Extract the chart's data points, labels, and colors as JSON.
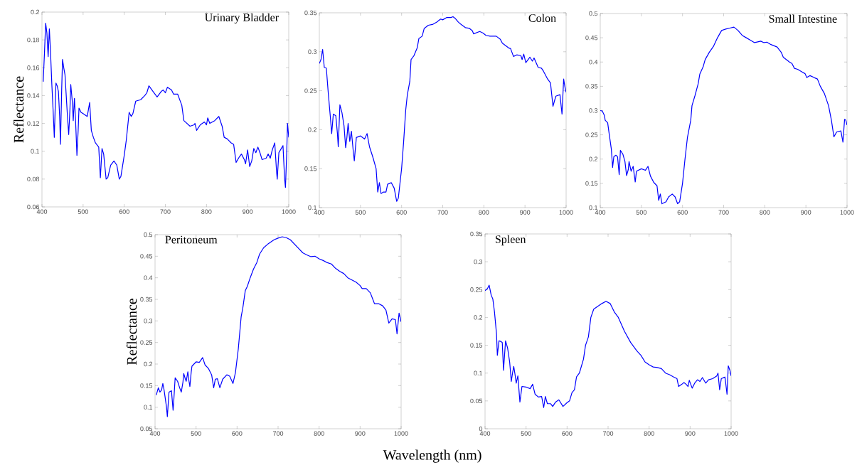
{
  "chart_data": [
    {
      "type": "line",
      "title": "Urinary Bladder",
      "ylabel": "Reflectance",
      "xlim": [
        400,
        1000
      ],
      "ylim": [
        0.06,
        0.2
      ],
      "xticks": [
        400,
        500,
        600,
        700,
        800,
        900,
        1000
      ],
      "yticks": [
        0.06,
        0.08,
        0.1,
        0.12,
        0.14,
        0.16,
        0.18,
        0.2
      ],
      "series": [
        {
          "color": "#0000ff",
          "x": [
            403,
            406,
            409,
            412,
            415,
            418,
            421,
            424,
            427,
            430,
            434,
            437,
            440,
            443,
            445,
            448,
            450,
            453,
            456,
            459,
            462,
            465,
            468,
            470,
            474,
            476,
            479,
            482,
            485,
            488,
            490,
            495,
            500,
            510,
            516,
            520,
            525,
            530,
            538,
            542,
            546,
            550,
            556,
            560,
            567,
            575,
            582,
            588,
            592,
            600,
            605,
            612,
            617,
            621,
            628,
            640,
            650,
            655,
            660,
            670,
            680,
            690,
            695,
            700,
            705,
            715,
            720,
            730,
            740,
            745,
            760,
            770,
            772,
            776,
            785,
            795,
            800,
            803,
            808,
            820,
            830,
            838,
            843,
            850,
            860,
            866,
            872,
            880,
            885,
            892,
            895,
            900,
            905,
            910,
            915,
            920,
            925,
            930,
            935,
            945,
            950,
            955,
            960,
            966,
            970,
            972,
            976,
            986,
            990,
            992,
            995,
            997,
            1000
          ],
          "values": [
            0.15,
            0.17,
            0.192,
            0.185,
            0.168,
            0.188,
            0.17,
            0.148,
            0.13,
            0.11,
            0.149,
            0.147,
            0.143,
            0.125,
            0.105,
            0.145,
            0.166,
            0.16,
            0.155,
            0.14,
            0.125,
            0.112,
            0.13,
            0.148,
            0.135,
            0.122,
            0.138,
            0.12,
            0.097,
            0.115,
            0.131,
            0.128,
            0.127,
            0.125,
            0.135,
            0.115,
            0.11,
            0.106,
            0.103,
            0.081,
            0.102,
            0.098,
            0.08,
            0.081,
            0.09,
            0.093,
            0.09,
            0.08,
            0.082,
            0.097,
            0.108,
            0.128,
            0.125,
            0.127,
            0.136,
            0.137,
            0.14,
            0.142,
            0.147,
            0.143,
            0.139,
            0.143,
            0.144,
            0.142,
            0.146,
            0.144,
            0.141,
            0.141,
            0.133,
            0.122,
            0.118,
            0.119,
            0.12,
            0.115,
            0.119,
            0.121,
            0.119,
            0.124,
            0.12,
            0.122,
            0.125,
            0.118,
            0.11,
            0.109,
            0.106,
            0.105,
            0.092,
            0.096,
            0.098,
            0.094,
            0.091,
            0.101,
            0.089,
            0.093,
            0.102,
            0.099,
            0.103,
            0.099,
            0.094,
            0.095,
            0.098,
            0.095,
            0.101,
            0.106,
            0.087,
            0.08,
            0.099,
            0.104,
            0.08,
            0.074,
            0.098,
            0.12,
            0.11
          ]
        }
      ]
    },
    {
      "type": "line",
      "title": "Colon",
      "xlim": [
        400,
        1000
      ],
      "ylim": [
        0.1,
        0.35
      ],
      "xticks": [
        400,
        500,
        600,
        700,
        800,
        900,
        1000
      ],
      "yticks": [
        0.1,
        0.15,
        0.2,
        0.25,
        0.3,
        0.35
      ],
      "series": [
        {
          "color": "#0000ff",
          "x": [
            400,
            404,
            408,
            412,
            417,
            422,
            427,
            430,
            434,
            440,
            444,
            446,
            450,
            455,
            460,
            464,
            467,
            470,
            474,
            478,
            482,
            485,
            490,
            500,
            510,
            516,
            522,
            530,
            538,
            542,
            546,
            550,
            556,
            562,
            566,
            575,
            582,
            588,
            592,
            600,
            605,
            610,
            614,
            620,
            623,
            630,
            638,
            642,
            650,
            655,
            665,
            675,
            685,
            695,
            700,
            710,
            720,
            725,
            730,
            738,
            745,
            755,
            765,
            772,
            775,
            790,
            798,
            805,
            815,
            830,
            840,
            845,
            860,
            865,
            872,
            880,
            890,
            893,
            897,
            902,
            912,
            918,
            922,
            932,
            940,
            945,
            955,
            962,
            968,
            975,
            985,
            990,
            994,
            997,
            1000
          ],
          "values": [
            0.285,
            0.29,
            0.303,
            0.28,
            0.279,
            0.245,
            0.215,
            0.195,
            0.22,
            0.218,
            0.195,
            0.178,
            0.232,
            0.222,
            0.205,
            0.177,
            0.19,
            0.208,
            0.185,
            0.198,
            0.175,
            0.16,
            0.19,
            0.192,
            0.188,
            0.195,
            0.178,
            0.165,
            0.15,
            0.12,
            0.132,
            0.118,
            0.12,
            0.12,
            0.13,
            0.132,
            0.125,
            0.108,
            0.112,
            0.15,
            0.185,
            0.225,
            0.245,
            0.262,
            0.29,
            0.295,
            0.305,
            0.317,
            0.32,
            0.33,
            0.334,
            0.335,
            0.338,
            0.342,
            0.341,
            0.344,
            0.344,
            0.345,
            0.343,
            0.338,
            0.335,
            0.331,
            0.33,
            0.327,
            0.323,
            0.326,
            0.324,
            0.321,
            0.32,
            0.32,
            0.316,
            0.311,
            0.305,
            0.304,
            0.294,
            0.296,
            0.295,
            0.29,
            0.297,
            0.286,
            0.293,
            0.288,
            0.292,
            0.28,
            0.279,
            0.275,
            0.265,
            0.26,
            0.23,
            0.243,
            0.245,
            0.22,
            0.265,
            0.255,
            0.248
          ]
        }
      ]
    },
    {
      "type": "line",
      "title": "Small Intestine",
      "xlim": [
        400,
        1000
      ],
      "ylim": [
        0.1,
        0.5
      ],
      "xticks": [
        400,
        500,
        600,
        700,
        800,
        900,
        1000
      ],
      "yticks": [
        0.1,
        0.15,
        0.2,
        0.25,
        0.3,
        0.35,
        0.4,
        0.45,
        0.5
      ],
      "series": [
        {
          "color": "#0000ff",
          "x": [
            400,
            405,
            410,
            412,
            418,
            422,
            427,
            430,
            433,
            438,
            442,
            446,
            449,
            455,
            460,
            464,
            468,
            470,
            475,
            480,
            485,
            488,
            500,
            510,
            516,
            522,
            530,
            538,
            542,
            546,
            550,
            560,
            566,
            575,
            582,
            588,
            593,
            600,
            606,
            612,
            620,
            623,
            630,
            638,
            642,
            650,
            655,
            665,
            675,
            685,
            695,
            705,
            715,
            725,
            735,
            745,
            755,
            765,
            775,
            785,
            790,
            798,
            805,
            815,
            830,
            840,
            845,
            860,
            866,
            872,
            880,
            890,
            898,
            902,
            910,
            920,
            928,
            935,
            945,
            955,
            962,
            968,
            975,
            985,
            990,
            994,
            997,
            1000
          ],
          "values": [
            0.3,
            0.299,
            0.29,
            0.28,
            0.275,
            0.25,
            0.22,
            0.183,
            0.205,
            0.208,
            0.205,
            0.168,
            0.218,
            0.21,
            0.195,
            0.166,
            0.178,
            0.195,
            0.175,
            0.185,
            0.153,
            0.175,
            0.18,
            0.177,
            0.185,
            0.165,
            0.152,
            0.145,
            0.115,
            0.128,
            0.108,
            0.112,
            0.122,
            0.128,
            0.122,
            0.108,
            0.112,
            0.15,
            0.2,
            0.245,
            0.28,
            0.31,
            0.33,
            0.355,
            0.375,
            0.39,
            0.405,
            0.42,
            0.432,
            0.45,
            0.465,
            0.468,
            0.47,
            0.472,
            0.465,
            0.455,
            0.45,
            0.445,
            0.44,
            0.442,
            0.443,
            0.44,
            0.441,
            0.436,
            0.431,
            0.42,
            0.41,
            0.4,
            0.397,
            0.387,
            0.385,
            0.38,
            0.376,
            0.368,
            0.372,
            0.368,
            0.365,
            0.35,
            0.335,
            0.31,
            0.28,
            0.246,
            0.256,
            0.258,
            0.235,
            0.282,
            0.28,
            0.27
          ]
        }
      ]
    },
    {
      "type": "line",
      "title": "Peritoneum",
      "ylabel": "Reflectance",
      "xlabel": "Wavelength (nm)",
      "xlim": [
        400,
        1000
      ],
      "ylim": [
        0.05,
        0.5
      ],
      "xticks": [
        400,
        500,
        600,
        700,
        800,
        900,
        1000
      ],
      "yticks": [
        0.05,
        0.1,
        0.15,
        0.2,
        0.25,
        0.3,
        0.35,
        0.4,
        0.45,
        0.5
      ],
      "series": [
        {
          "color": "#0000ff",
          "x": [
            403,
            408,
            412,
            416,
            419,
            422,
            428,
            430,
            434,
            440,
            444,
            446,
            449,
            455,
            460,
            464,
            468,
            470,
            474,
            476,
            480,
            482,
            485,
            488,
            490,
            500,
            508,
            516,
            522,
            530,
            538,
            543,
            547,
            552,
            558,
            565,
            575,
            582,
            590,
            596,
            603,
            610,
            614,
            620,
            625,
            632,
            640,
            648,
            655,
            665,
            675,
            690,
            700,
            710,
            720,
            730,
            740,
            750,
            760,
            770,
            780,
            790,
            800,
            810,
            820,
            830,
            840,
            850,
            860,
            870,
            880,
            890,
            900,
            905,
            915,
            925,
            935,
            945,
            955,
            963,
            970,
            978,
            986,
            990,
            995,
            1000
          ],
          "values": [
            0.128,
            0.145,
            0.135,
            0.14,
            0.155,
            0.14,
            0.1,
            0.078,
            0.135,
            0.138,
            0.093,
            0.12,
            0.168,
            0.16,
            0.145,
            0.135,
            0.158,
            0.178,
            0.165,
            0.16,
            0.182,
            0.165,
            0.148,
            0.18,
            0.195,
            0.205,
            0.204,
            0.215,
            0.198,
            0.19,
            0.175,
            0.145,
            0.165,
            0.166,
            0.145,
            0.165,
            0.175,
            0.172,
            0.155,
            0.18,
            0.235,
            0.31,
            0.33,
            0.37,
            0.38,
            0.4,
            0.42,
            0.435,
            0.455,
            0.47,
            0.478,
            0.488,
            0.492,
            0.495,
            0.493,
            0.488,
            0.478,
            0.468,
            0.458,
            0.453,
            0.449,
            0.45,
            0.444,
            0.44,
            0.435,
            0.432,
            0.422,
            0.415,
            0.41,
            0.4,
            0.395,
            0.39,
            0.382,
            0.375,
            0.375,
            0.365,
            0.34,
            0.34,
            0.335,
            0.325,
            0.295,
            0.305,
            0.303,
            0.27,
            0.318,
            0.298
          ]
        }
      ]
    },
    {
      "type": "line",
      "title": "Spleen",
      "xlim": [
        400,
        1000
      ],
      "ylim": [
        0,
        0.35
      ],
      "xticks": [
        400,
        500,
        600,
        700,
        800,
        900,
        1000
      ],
      "yticks": [
        0,
        0.05,
        0.1,
        0.15,
        0.2,
        0.25,
        0.3,
        0.35
      ],
      "series": [
        {
          "color": "#0000ff",
          "x": [
            400,
            406,
            410,
            415,
            419,
            423,
            428,
            430,
            434,
            438,
            442,
            445,
            450,
            455,
            460,
            464,
            467,
            470,
            473,
            476,
            480,
            485,
            490,
            500,
            510,
            516,
            522,
            530,
            538,
            543,
            547,
            552,
            560,
            565,
            572,
            580,
            590,
            600,
            606,
            612,
            618,
            623,
            630,
            640,
            645,
            652,
            658,
            665,
            675,
            685,
            695,
            705,
            715,
            725,
            740,
            755,
            770,
            780,
            790,
            800,
            810,
            820,
            830,
            840,
            850,
            860,
            868,
            872,
            880,
            885,
            890,
            895,
            898,
            905,
            912,
            918,
            924,
            930,
            938,
            945,
            955,
            965,
            968,
            972,
            976,
            985,
            990,
            993,
            997,
            1000
          ],
          "values": [
            0.248,
            0.252,
            0.258,
            0.24,
            0.233,
            0.21,
            0.17,
            0.132,
            0.158,
            0.157,
            0.155,
            0.105,
            0.158,
            0.145,
            0.12,
            0.085,
            0.1,
            0.112,
            0.098,
            0.082,
            0.095,
            0.048,
            0.076,
            0.075,
            0.072,
            0.08,
            0.062,
            0.057,
            0.058,
            0.038,
            0.058,
            0.045,
            0.045,
            0.04,
            0.048,
            0.052,
            0.04,
            0.047,
            0.05,
            0.065,
            0.07,
            0.093,
            0.1,
            0.125,
            0.15,
            0.165,
            0.2,
            0.215,
            0.22,
            0.225,
            0.229,
            0.225,
            0.21,
            0.2,
            0.175,
            0.155,
            0.14,
            0.132,
            0.12,
            0.115,
            0.111,
            0.11,
            0.108,
            0.1,
            0.097,
            0.093,
            0.09,
            0.076,
            0.08,
            0.083,
            0.08,
            0.076,
            0.087,
            0.073,
            0.083,
            0.088,
            0.085,
            0.092,
            0.082,
            0.088,
            0.09,
            0.095,
            0.1,
            0.07,
            0.09,
            0.093,
            0.062,
            0.113,
            0.105,
            0.095
          ]
        }
      ]
    }
  ]
}
